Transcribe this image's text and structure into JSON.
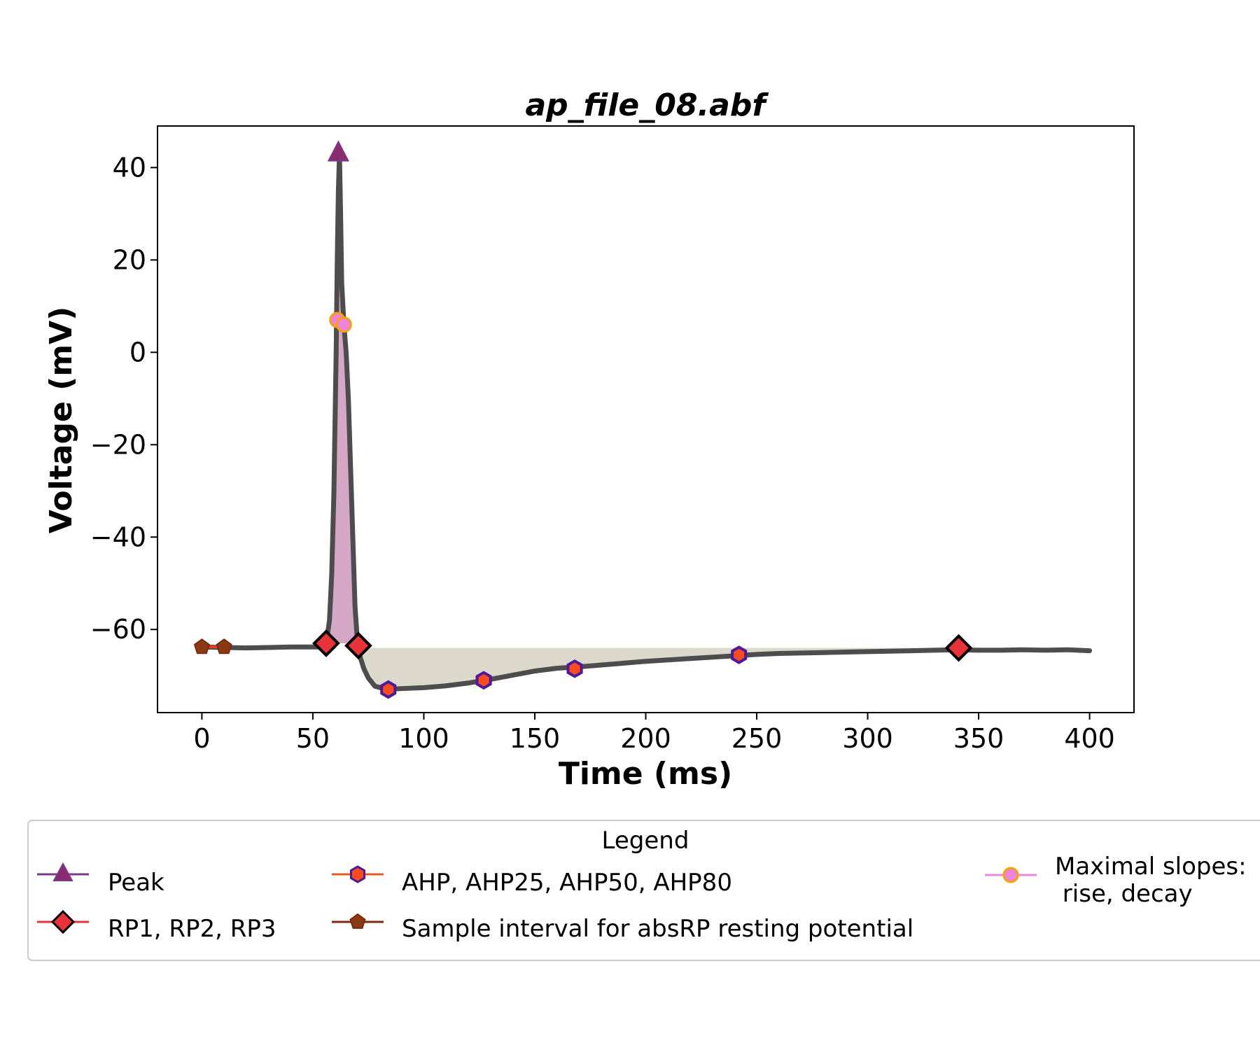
{
  "chart_data": {
    "type": "line",
    "title": "ap_file_08.abf",
    "xlabel": "Time (ms)",
    "ylabel": "Voltage (mV)",
    "xlim": [
      -20,
      420
    ],
    "ylim": [
      -78,
      49
    ],
    "xticks": [
      0,
      50,
      100,
      150,
      200,
      250,
      300,
      350,
      400
    ],
    "yticks": [
      40,
      20,
      0,
      -20,
      -40,
      -60
    ],
    "trace": {
      "color": "#4d4d4d",
      "x": [
        0,
        10,
        20,
        30,
        40,
        50,
        54,
        56,
        57.5,
        58.5,
        59.5,
        60.5,
        61,
        61.5,
        62,
        62.5,
        63,
        64,
        65,
        66,
        67,
        68,
        69,
        70,
        71,
        73,
        75,
        78,
        82,
        86,
        90,
        100,
        110,
        120,
        130,
        140,
        150,
        160,
        170,
        180,
        190,
        200,
        210,
        220,
        230,
        240,
        250,
        260,
        270,
        280,
        290,
        300,
        310,
        320,
        330,
        340,
        350,
        360,
        370,
        380,
        390,
        400
      ],
      "y": [
        -63.8,
        -63.9,
        -64.0,
        -63.9,
        -63.8,
        -63.8,
        -63.8,
        -63.0,
        -58,
        -48,
        -30,
        0,
        20,
        35,
        43,
        30,
        15,
        6,
        0,
        -10,
        -25,
        -40,
        -55,
        -62,
        -65.5,
        -68.5,
        -70.5,
        -72.3,
        -72.8,
        -72.9,
        -72.8,
        -72.6,
        -72.2,
        -71.6,
        -70.8,
        -69.9,
        -69.0,
        -68.4,
        -68.1,
        -67.7,
        -67.3,
        -66.9,
        -66.6,
        -66.3,
        -66.0,
        -65.7,
        -65.4,
        -65.2,
        -65.1,
        -65.0,
        -64.9,
        -64.8,
        -64.7,
        -64.6,
        -64.5,
        -64.4,
        -64.5,
        -64.5,
        -64.4,
        -64.5,
        -64.4,
        -64.6
      ]
    },
    "spike_area": {
      "color": "#d4a8c4",
      "x": [
        56,
        70.5
      ],
      "baseline": -63
    },
    "ahp_area": {
      "color": "#dcd8cc",
      "x": [
        70.5,
        345
      ],
      "baseline": -64
    },
    "markers": {
      "peak": {
        "x": 61.5,
        "y": 43
      },
      "rp": [
        {
          "x": 56,
          "y": -63
        },
        {
          "x": 70.5,
          "y": -63.5
        },
        {
          "x": 341,
          "y": -64
        }
      ],
      "ahp": [
        {
          "x": 84,
          "y": -73
        },
        {
          "x": 127,
          "y": -71
        },
        {
          "x": 168,
          "y": -68.5
        },
        {
          "x": 242,
          "y": -65.5
        }
      ],
      "sample_interval": {
        "x": [
          0,
          10
        ],
        "y": -63.8
      },
      "max_slopes": [
        {
          "x": 61,
          "y": 7
        },
        {
          "x": 64,
          "y": 6
        }
      ]
    },
    "legend": {
      "title": "Legend",
      "placement": "bottom",
      "entries": [
        {
          "key": "peak",
          "label": "Peak",
          "color": "#8b2a6f",
          "line": "#7a3a8a"
        },
        {
          "key": "rp",
          "label": "RP1, RP2, RP3",
          "color": "#e8333a",
          "line": "#e8333a"
        },
        {
          "key": "ahp",
          "label": "AHP, AHP25, AHP50, AHP80",
          "color": "#ff4a1c",
          "line": "#e85a20"
        },
        {
          "key": "sample",
          "label": "Sample interval for absRP resting potential",
          "color": "#8a3a12",
          "line": "#7a2a10"
        },
        {
          "key": "slopes",
          "label_lines": [
            "Maximal slopes:",
            " rise, decay"
          ],
          "color": "#ee82dd",
          "line": "#e88ad8"
        }
      ]
    }
  }
}
